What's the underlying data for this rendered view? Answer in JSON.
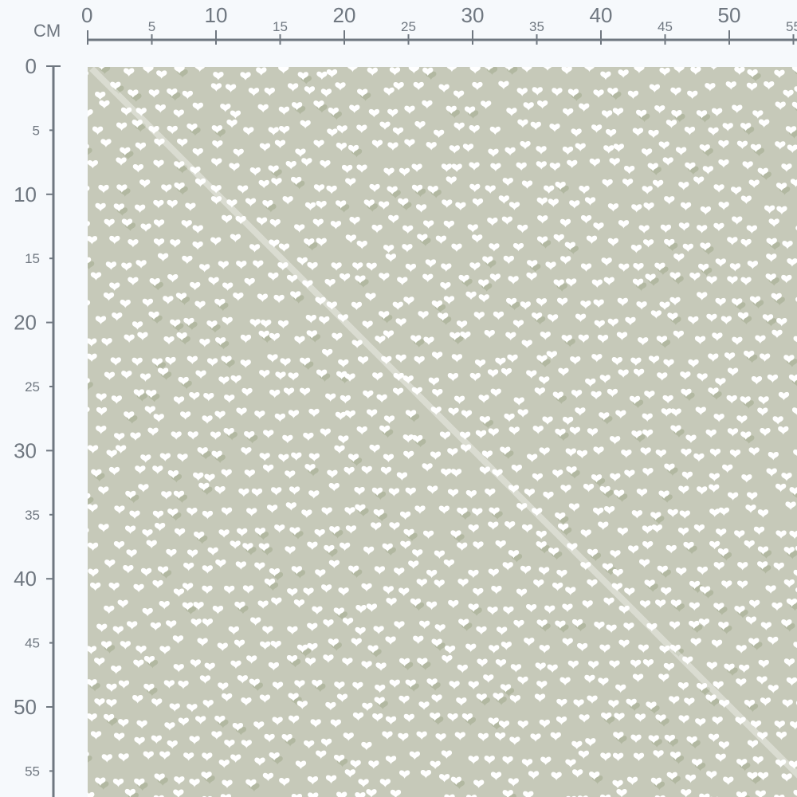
{
  "ruler": {
    "unit": "CM",
    "top_labels": [
      "0",
      "5",
      "10",
      "15",
      "20",
      "25",
      "30",
      "35",
      "40",
      "45",
      "50",
      "55"
    ],
    "left_labels": [
      "0",
      "5",
      "10",
      "15",
      "20",
      "25",
      "30",
      "35",
      "40",
      "45",
      "50",
      "55"
    ]
  },
  "fabric": {
    "pattern": "small white hearts with faint darker heart shadows",
    "colors": {
      "background": "#c6c9b9",
      "heart": "#ffffff",
      "shadow_heart": "#b2b8a1",
      "ruler": "#6f7780",
      "page": "#f6f9fc"
    }
  }
}
